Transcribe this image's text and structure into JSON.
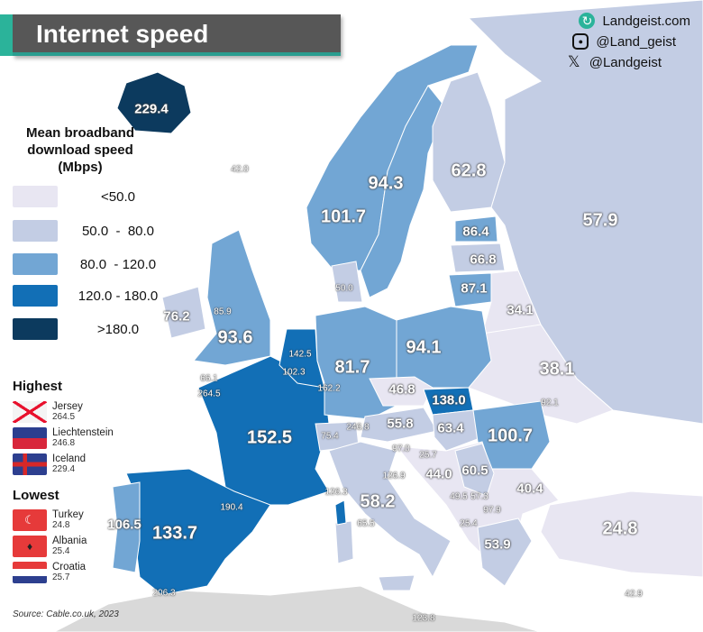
{
  "title": "Internet speed",
  "brand": {
    "site": "Landgeist.com",
    "instagram": "@Land_geist",
    "x": "@Landgeist",
    "icons": [
      "globe-icon",
      "instagram-icon",
      "x-icon"
    ]
  },
  "legend": {
    "title_lines": [
      "Mean broadband",
      "download speed",
      "(Mbps)"
    ],
    "bins": [
      {
        "label": "<50.0",
        "color": "#e8e6f2"
      },
      {
        "label": "50.0  -  80.0",
        "color": "#c3cde4"
      },
      {
        "label": "80.0  - 120.0",
        "color": "#72a6d4"
      },
      {
        "label": "120.0 - 180.0",
        "color": "#126fb6"
      },
      {
        "label": ">180.0",
        "color": "#0c3a5e"
      }
    ]
  },
  "highest": {
    "title": "Highest",
    "items": [
      {
        "name": "Jersey",
        "value": "264.5"
      },
      {
        "name": "Liechtenstein",
        "value": "246.8"
      },
      {
        "name": "Iceland",
        "value": "229.4"
      }
    ]
  },
  "lowest": {
    "title": "Lowest",
    "items": [
      {
        "name": "Turkey",
        "value": "24.8"
      },
      {
        "name": "Albania",
        "value": "25.4"
      },
      {
        "name": "Croatia",
        "value": "25.7"
      }
    ]
  },
  "source": "Source: Cable.co.uk, 2023",
  "values": {
    "iceland": "229.4",
    "faroe": "42.0",
    "norway": "94.3",
    "sweden": "101.7",
    "finland": "62.8",
    "russia": "57.9",
    "estonia": "86.4",
    "latvia": "66.8",
    "lithuania": "87.1",
    "denmark": "50.0",
    "belarus": "34.1",
    "ireland": "76.2",
    "isle_of_man": "85.9",
    "uk": "93.6",
    "netherlands": "142.5",
    "belgium": "102.3",
    "luxembourg": "162.2",
    "guernsey": "66.1",
    "jersey": "264.5",
    "germany": "81.7",
    "poland": "94.1",
    "ukraine": "38.1",
    "czechia": "46.8",
    "slovakia": "138.0",
    "moldova": "92.1",
    "france": "152.5",
    "switzerland": "75.4",
    "liechtenstein": "246.8",
    "austria": "55.8",
    "hungary": "63.4",
    "romania": "100.7",
    "slovenia": "97.0",
    "croatia": "25.7",
    "bosnia": "44.0",
    "serbia": "60.5",
    "bulgaria": "40.4",
    "san_marino": "126.9",
    "monaco": "126.3",
    "andorra": "190.4",
    "italy": "58.2",
    "montenegro": "49.5",
    "kosovo": "57.3",
    "north_macedonia": "97.9",
    "albania": "25.4",
    "vatican": "65.5",
    "portugal": "106.5",
    "spain": "133.7",
    "greece": "53.9",
    "turkey": "24.8",
    "gibraltar": "206.3",
    "malta": "123.8",
    "cyprus": "42.9"
  }
}
